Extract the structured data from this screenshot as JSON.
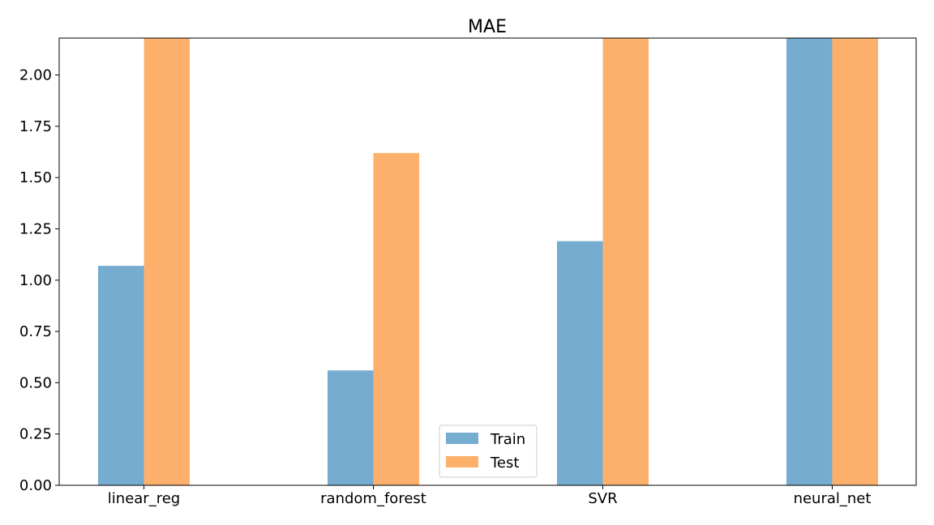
{
  "chart_data": {
    "type": "bar",
    "title": "MAE",
    "xlabel": "",
    "ylabel": "",
    "categories": [
      "linear_reg",
      "random_forest",
      "SVR",
      "neural_net"
    ],
    "series": [
      {
        "name": "Train",
        "color": "#77acd1",
        "values": [
          1.07,
          0.56,
          1.19,
          2.18
        ]
      },
      {
        "name": "Test",
        "color": "#fdb06c",
        "values": [
          2.18,
          1.62,
          2.18,
          2.18
        ]
      }
    ],
    "ylim": [
      0,
      2.18
    ],
    "yticks": [
      "0.00",
      "0.25",
      "0.50",
      "0.75",
      "1.00",
      "1.25",
      "1.50",
      "1.75",
      "2.00"
    ],
    "grid": false,
    "legend_position": "bottom-center"
  }
}
